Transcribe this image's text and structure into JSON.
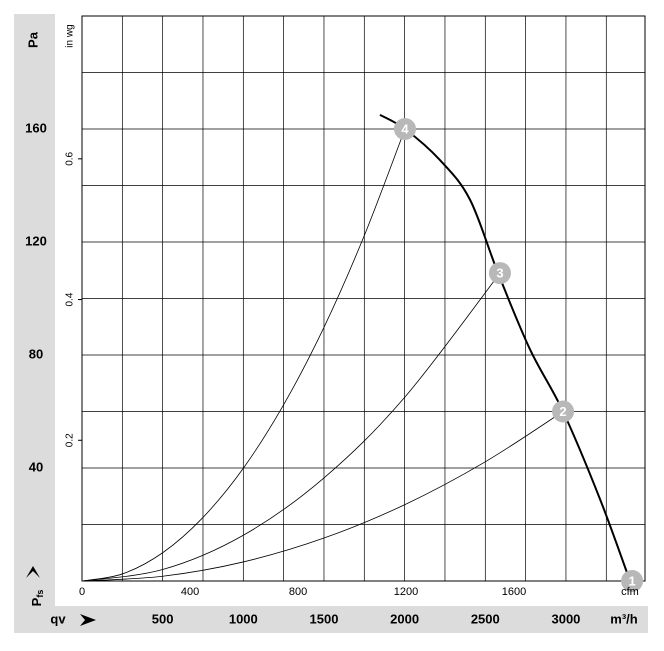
{
  "chart_data": {
    "type": "line",
    "y_label": "Pa",
    "y2_label": "in wg",
    "x_label": "m³/h",
    "x2_label": "cfm",
    "pressure_label": {
      "main": "P",
      "sub": "fs"
    },
    "flow_label": "qv",
    "xlim": [
      0,
      3490
    ],
    "xticks": [
      500,
      1000,
      1500,
      2000,
      2500,
      3000
    ],
    "x2lim": [
      0,
      2085
    ],
    "x2ticks": [
      0,
      400,
      800,
      1200,
      1600
    ],
    "ylim": [
      0,
      200
    ],
    "yticks": [
      40,
      80,
      120,
      160
    ],
    "y2lim": [
      0,
      0.803
    ],
    "y2ticks": [
      0.2,
      0.4,
      0.6
    ],
    "xgrid": [
      0,
      250,
      500,
      750,
      1000,
      1250,
      1500,
      1750,
      2000,
      2250,
      2500,
      2750,
      3000,
      3250
    ],
    "ygrid": [
      0,
      20,
      40,
      60,
      80,
      100,
      120,
      140,
      160,
      180,
      200
    ],
    "series": [
      {
        "color": "#000000",
        "width": 2,
        "x": [
          1847,
          2002,
          2219,
          2405,
          2579,
          2777,
          2982,
          3211,
          3397
        ],
        "values": [
          165,
          160,
          149,
          135,
          109,
          82,
          60,
          29,
          0
        ]
      },
      {
        "color": "#000000",
        "width": 0.8,
        "x": [
          0,
          250,
          500,
          750,
          1000,
          1250,
          1500,
          1750,
          2002
        ],
        "values": [
          0,
          2.5,
          10,
          22.5,
          39.9,
          62.4,
          89.8,
          122.3,
          160
        ]
      },
      {
        "color": "#000000",
        "width": 0.8,
        "x": [
          0,
          500,
          1000,
          1500,
          2000,
          2591
        ],
        "values": [
          0,
          4.06,
          16.2,
          36.5,
          65,
          109
        ]
      },
      {
        "color": "#000000",
        "width": 0.8,
        "x": [
          0,
          500,
          1000,
          1500,
          2000,
          2500,
          2982
        ],
        "values": [
          0,
          1.69,
          6.75,
          15.2,
          27,
          42.2,
          60
        ]
      }
    ],
    "operating_points": {
      "x": [
        2002,
        2591,
        2982,
        3410
      ],
      "values": [
        160,
        109,
        60,
        0
      ],
      "labels": [
        "4",
        "3",
        "2",
        "1"
      ],
      "color": "#b8b8b8"
    }
  }
}
